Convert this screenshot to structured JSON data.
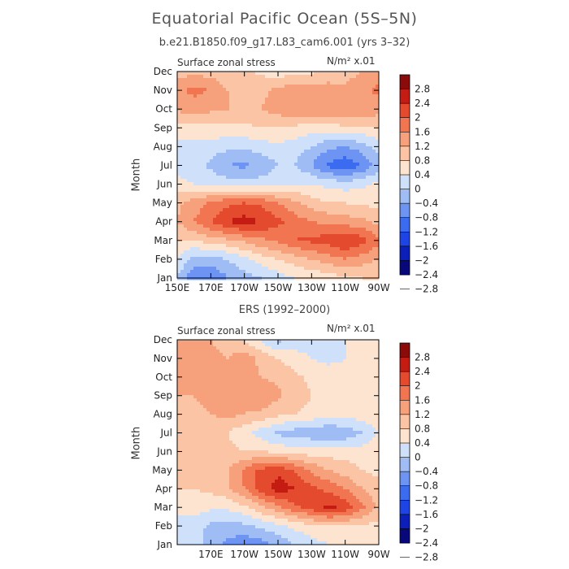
{
  "header": {
    "title": "Equatorial Pacific Ocean (5S–5N)",
    "subtitle": "b.e21.B1850.f09_g17.L83_cam6.001 (yrs 3–32)"
  },
  "colors": {
    "levels": [
      "#08087a",
      "#0c1fb8",
      "#1e44e6",
      "#3b6cf0",
      "#6d94f2",
      "#a0bcf5",
      "#cfe0fb",
      "#fde4d0",
      "#fbc4a4",
      "#f7a07c",
      "#f27552",
      "#e44a2e",
      "#c41c12",
      "#8b0a0a"
    ]
  },
  "chart_data": [
    {
      "type": "heatmap",
      "name": "model",
      "title": "",
      "left_label": "Surface zonal stress",
      "right_label": "N/m² x.01",
      "ylabel": "Month",
      "xlabel": "",
      "x": [
        150,
        160,
        170,
        180,
        190,
        200,
        210,
        220,
        230,
        240,
        250,
        260,
        270
      ],
      "xlim": [
        150,
        270
      ],
      "x_ticks": [
        150,
        170,
        190,
        210,
        230,
        250,
        270
      ],
      "x_tick_labels": [
        "150E",
        "170E",
        "170W",
        "150W",
        "130W",
        "110W",
        "90W"
      ],
      "y_ticks": [
        "Jan",
        "Feb",
        "Mar",
        "Apr",
        "May",
        "Jun",
        "Jul",
        "Aug",
        "Sep",
        "Oct",
        "Nov",
        "Dec"
      ],
      "levels": [
        -2.8,
        -2.4,
        -2,
        -1.6,
        -1.2,
        -0.8,
        -0.4,
        0,
        0.4,
        0.8,
        1.2,
        1.6,
        2,
        2.4,
        2.8
      ],
      "colorbar_labels": [
        "2.8",
        "2.4",
        "2",
        "1.6",
        "1.2",
        "0.8",
        "0.4",
        "0",
        "−0.4",
        "−0.8",
        "−1.2",
        "−1.6",
        "−2",
        "−2.4",
        "−2.8"
      ],
      "values": [
        [
          -0.8,
          -1.6,
          -1.6,
          -1.2,
          -1.0,
          -0.8,
          -0.6,
          -0.4,
          -0.3,
          -0.2,
          -0.1,
          0.0,
          0.0
        ],
        [
          -0.4,
          -1.0,
          -1.0,
          -0.8,
          -0.5,
          -0.2,
          0.0,
          0.2,
          0.4,
          0.6,
          0.8,
          0.6,
          0.4
        ],
        [
          0.0,
          0.0,
          0.2,
          0.3,
          0.5,
          0.7,
          0.9,
          1.2,
          1.3,
          1.4,
          1.6,
          1.4,
          0.9
        ],
        [
          0.4,
          0.8,
          1.2,
          1.6,
          1.8,
          1.6,
          1.3,
          1.0,
          0.8,
          0.7,
          0.6,
          0.5,
          0.3
        ],
        [
          0.3,
          0.6,
          0.9,
          1.1,
          1.2,
          1.1,
          0.8,
          0.5,
          0.2,
          0.0,
          0.0,
          -0.1,
          -0.1
        ],
        [
          -0.3,
          -0.4,
          -0.5,
          -0.6,
          -0.6,
          -0.6,
          -0.5,
          -0.4,
          -0.4,
          -0.5,
          -0.6,
          -0.5,
          -0.3
        ],
        [
          -0.5,
          -0.6,
          -0.9,
          -1.2,
          -1.3,
          -1.1,
          -0.8,
          -0.8,
          -1.2,
          -1.7,
          -1.9,
          -1.6,
          -1.0
        ],
        [
          -0.5,
          -0.5,
          -0.6,
          -0.7,
          -0.7,
          -0.6,
          -0.5,
          -0.6,
          -0.8,
          -1.1,
          -1.2,
          -1.0,
          -0.6
        ],
        [
          -0.2,
          -0.2,
          -0.1,
          -0.1,
          -0.1,
          0.0,
          0.0,
          -0.1,
          -0.2,
          -0.2,
          -0.1,
          -0.1,
          0.0
        ],
        [
          0.5,
          0.6,
          0.5,
          0.4,
          0.3,
          0.4,
          0.6,
          0.7,
          0.8,
          0.8,
          0.8,
          0.7,
          0.6
        ],
        [
          0.7,
          0.9,
          0.8,
          0.4,
          0.2,
          0.3,
          0.5,
          0.7,
          0.7,
          0.6,
          0.5,
          0.7,
          0.9
        ],
        [
          0.2,
          0.3,
          0.2,
          0.1,
          0.1,
          -0.1,
          -0.2,
          -0.2,
          -0.1,
          0.1,
          0.2,
          0.4,
          0.6
        ]
      ]
    },
    {
      "type": "heatmap",
      "name": "ers",
      "title": "ERS (1992–2000)",
      "left_label": "Surface zonal stress",
      "right_label": "N/m² x.01",
      "ylabel": "Month",
      "xlabel": "",
      "x": [
        160,
        170,
        180,
        190,
        200,
        210,
        220,
        230,
        240,
        250,
        260,
        270
      ],
      "xlim": [
        150,
        270
      ],
      "x_ticks": [
        170,
        190,
        210,
        230,
        250,
        270
      ],
      "x_tick_labels": [
        "170E",
        "170W",
        "150W",
        "130W",
        "110W",
        "90W"
      ],
      "y_ticks": [
        "Jan",
        "Feb",
        "Mar",
        "Apr",
        "May",
        "Jun",
        "Jul",
        "Aug",
        "Sep",
        "Oct",
        "Nov",
        "Dec"
      ],
      "levels": [
        -2.8,
        -2.4,
        -2,
        -1.6,
        -1.2,
        -0.8,
        -0.4,
        0,
        0.4,
        0.8,
        1.2,
        1.6,
        2,
        2.4,
        2.8
      ],
      "colorbar_labels": [
        "2.8",
        "2.4",
        "2",
        "1.6",
        "1.2",
        "0.8",
        "0.4",
        "0",
        "−0.4",
        "−0.8",
        "−1.2",
        "−1.6",
        "−2",
        "−2.4",
        "−2.8"
      ],
      "values": [
        [
          -0.6,
          -1.0,
          -1.3,
          -1.5,
          -1.4,
          -1.1,
          -0.8,
          -0.6,
          -0.4,
          -0.3,
          -0.2,
          -0.1
        ],
        [
          -0.6,
          -0.9,
          -1.0,
          -0.9,
          -0.7,
          -0.5,
          -0.3,
          -0.1,
          0.0,
          0.0,
          -0.1,
          -0.1
        ],
        [
          -0.2,
          -0.3,
          -0.3,
          -0.1,
          0.3,
          0.7,
          1.1,
          1.4,
          1.7,
          1.5,
          0.9,
          0.3
        ],
        [
          0.0,
          0.1,
          0.3,
          0.8,
          1.4,
          1.8,
          1.6,
          1.3,
          1.1,
          0.8,
          0.4,
          0.1
        ],
        [
          0.1,
          0.2,
          0.4,
          0.9,
          1.3,
          1.5,
          1.2,
          0.7,
          0.4,
          0.2,
          0.0,
          -0.1
        ],
        [
          0.2,
          0.2,
          0.1,
          0.0,
          0.0,
          -0.1,
          -0.2,
          -0.2,
          -0.2,
          -0.2,
          -0.2,
          -0.1
        ],
        [
          0.1,
          0.1,
          0.0,
          -0.3,
          -0.6,
          -0.9,
          -1.0,
          -1.1,
          -1.2,
          -1.1,
          -0.8,
          -0.4
        ],
        [
          0.3,
          0.4,
          0.5,
          0.4,
          0.3,
          0.1,
          0.0,
          -0.1,
          -0.2,
          -0.2,
          -0.2,
          -0.1
        ],
        [
          0.4,
          0.5,
          0.6,
          0.5,
          0.7,
          0.5,
          0.2,
          0.0,
          -0.1,
          -0.2,
          -0.1,
          0.0
        ],
        [
          0.4,
          0.6,
          0.5,
          0.5,
          0.4,
          0.3,
          0.1,
          -0.1,
          -0.2,
          -0.3,
          -0.2,
          -0.1
        ],
        [
          0.6,
          0.5,
          0.4,
          0.6,
          0.3,
          0.0,
          -0.2,
          -0.4,
          -0.5,
          -0.4,
          -0.2,
          -0.1
        ],
        [
          0.5,
          0.4,
          0.2,
          0.0,
          -0.5,
          -0.9,
          -0.7,
          -0.5,
          -0.4,
          -0.4,
          -0.3,
          -0.1
        ]
      ]
    }
  ]
}
